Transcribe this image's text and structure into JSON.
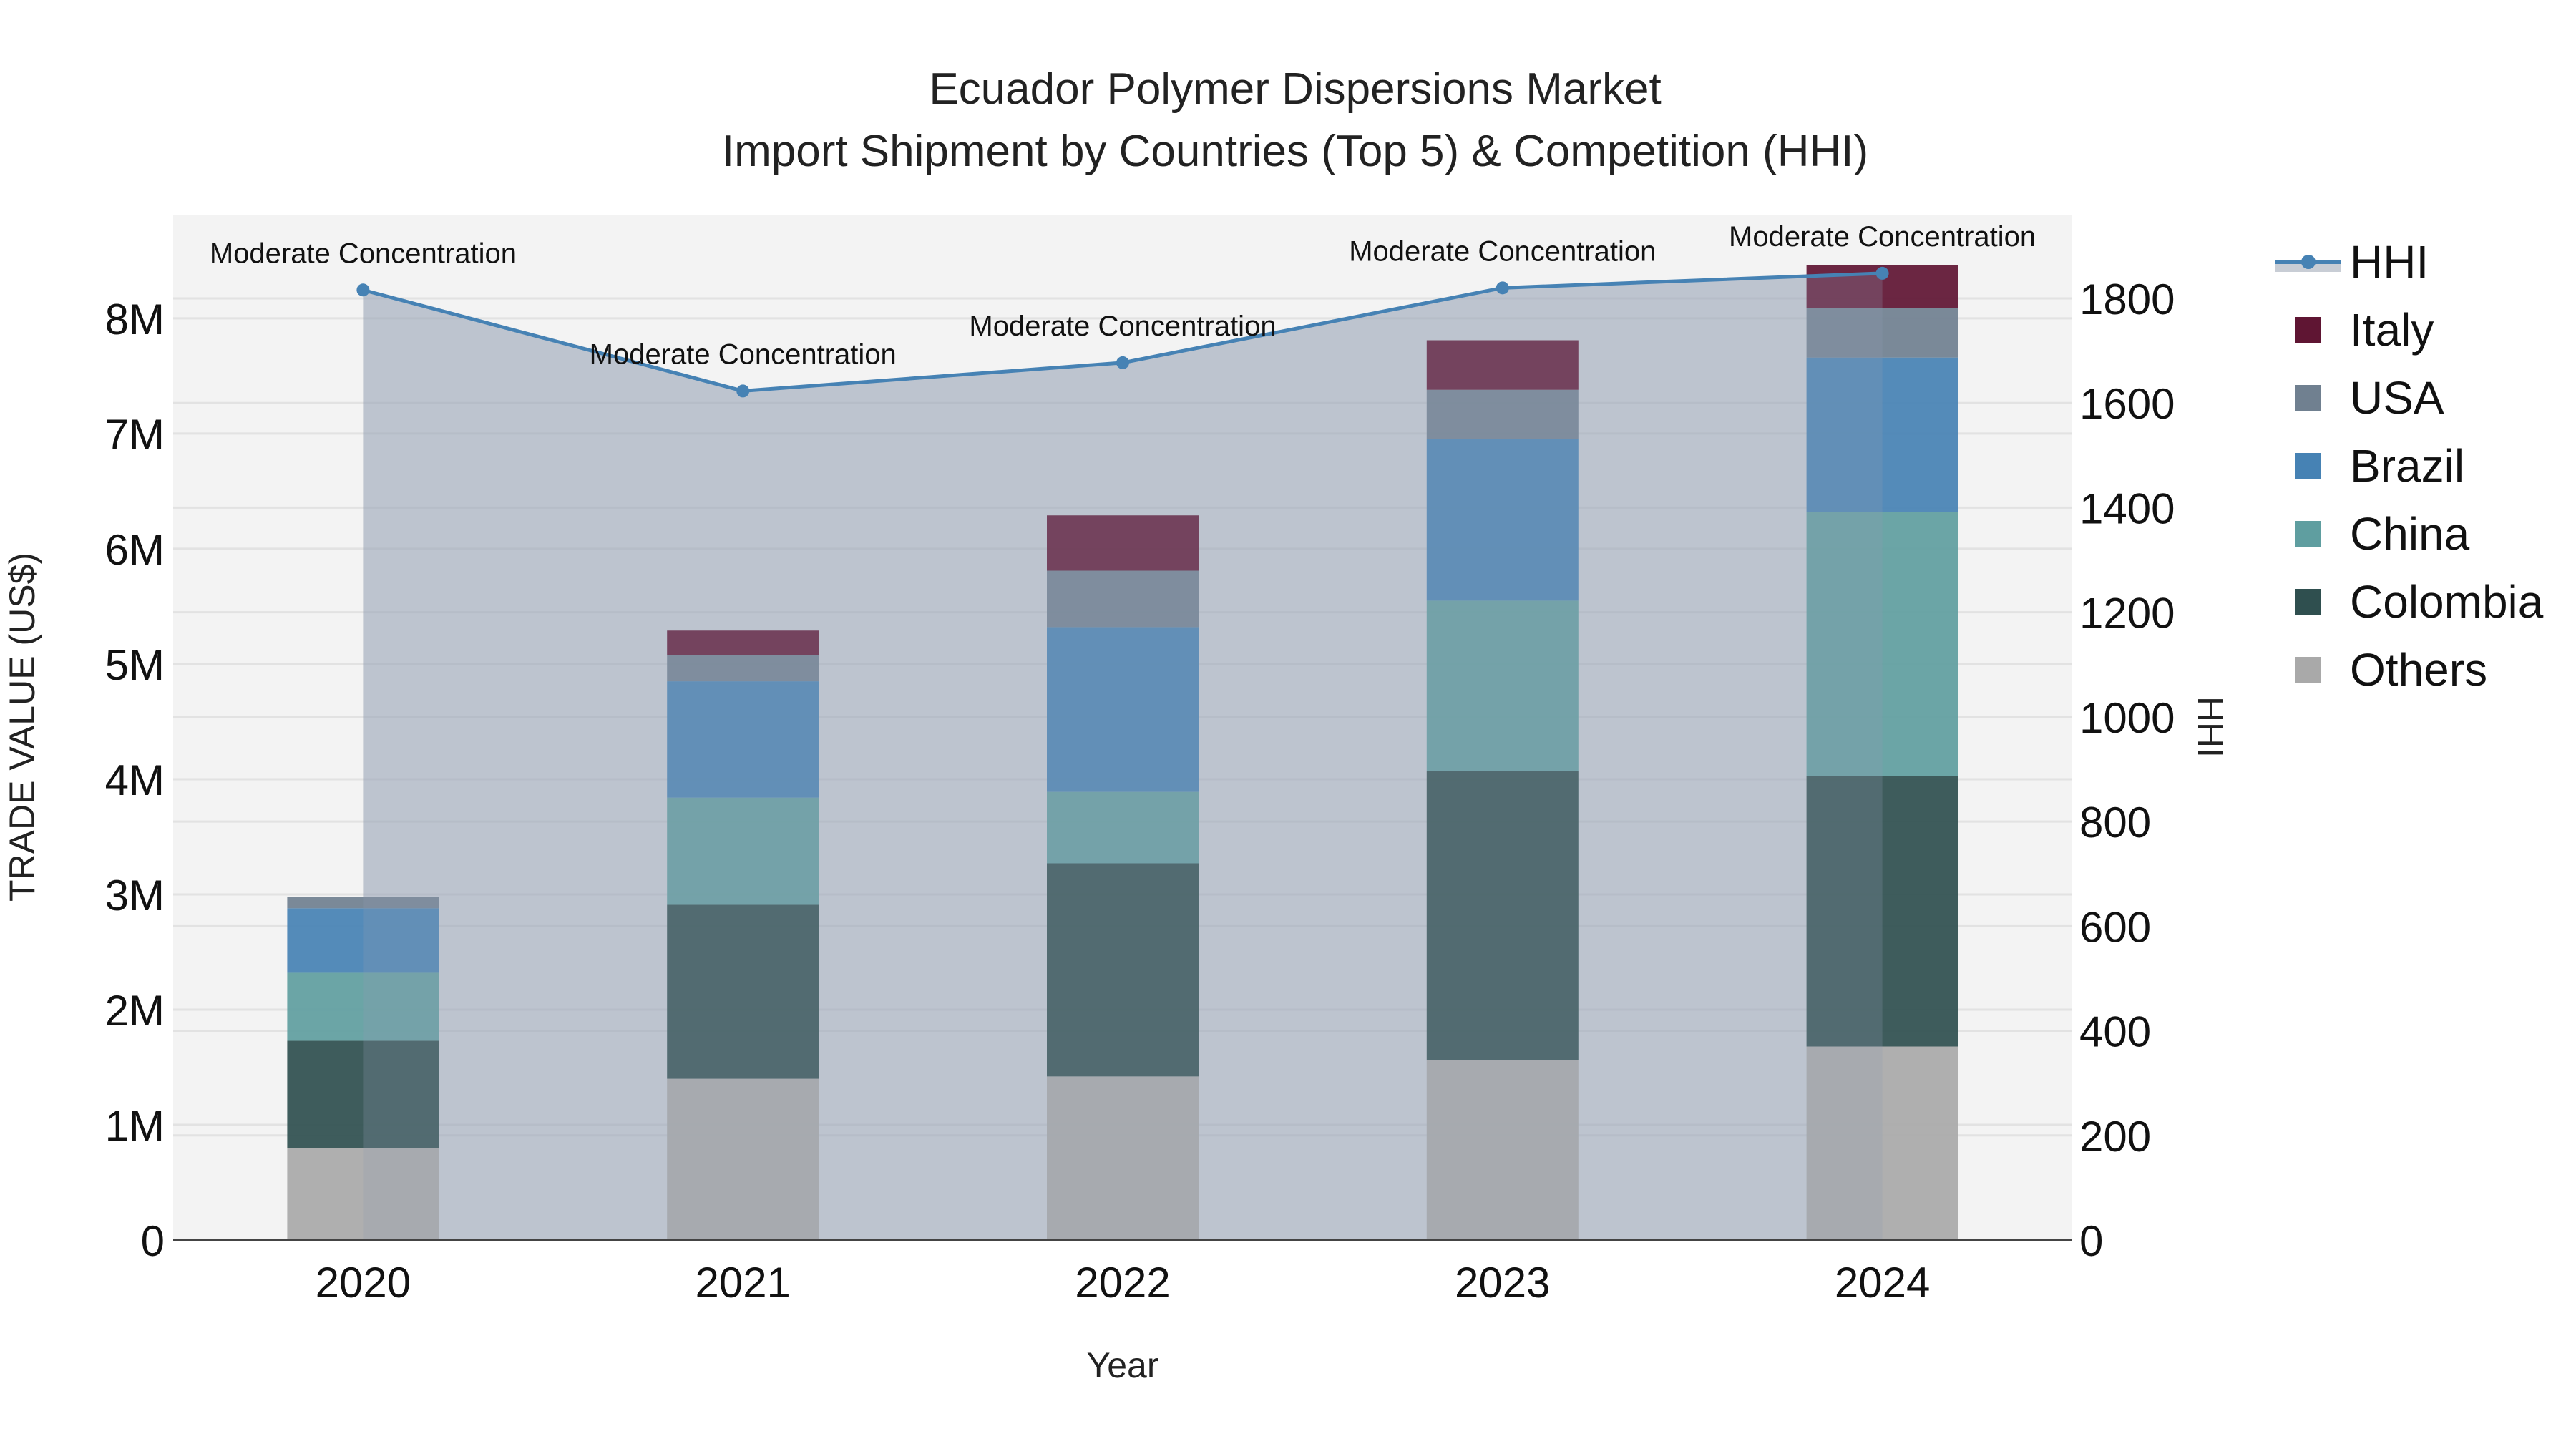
{
  "chart_data": {
    "type": "bar",
    "stacked": true,
    "title": "Ecuador Polymer Dispersions Market",
    "subtitle": "Import Shipment by Countries (Top 5) & Competition (HHI)",
    "xlabel": "Year",
    "ylabel": "TRADE VALUE (US$)",
    "y2label": "HHI",
    "categories": [
      "2020",
      "2021",
      "2022",
      "2023",
      "2024"
    ],
    "ylim": [
      0,
      8900000
    ],
    "y_ticks": [
      0,
      1000000,
      2000000,
      3000000,
      4000000,
      5000000,
      6000000,
      7000000,
      8000000
    ],
    "y_tick_labels": [
      "0",
      "1M",
      "2M",
      "3M",
      "4M",
      "5M",
      "6M",
      "7M",
      "8M"
    ],
    "y2lim": [
      0,
      1960
    ],
    "y2_ticks": [
      0,
      200,
      400,
      600,
      800,
      1000,
      1200,
      1400,
      1600,
      1800
    ],
    "y2_tick_labels": [
      "0",
      "200",
      "400",
      "600",
      "800",
      "1000",
      "1200",
      "1400",
      "1600",
      "1800"
    ],
    "grid": true,
    "legend_position": "right",
    "series": [
      {
        "name": "Others",
        "color": "#a9a9a9",
        "values": [
          800000,
          1400000,
          1420000,
          1560000,
          1680000
        ]
      },
      {
        "name": "Colombia",
        "color": "#2f4f4f",
        "values": [
          930000,
          1510000,
          1850000,
          2510000,
          2350000
        ]
      },
      {
        "name": "China",
        "color": "#5f9ea0",
        "values": [
          590000,
          930000,
          620000,
          1480000,
          2290000
        ]
      },
      {
        "name": "Brazil",
        "color": "#4682b4",
        "values": [
          560000,
          1010000,
          1430000,
          1400000,
          1340000
        ]
      },
      {
        "name": "USA",
        "color": "#708090",
        "values": [
          100000,
          230000,
          490000,
          430000,
          430000
        ]
      },
      {
        "name": "Italy",
        "color": "#5f1533",
        "values": [
          0,
          210000,
          480000,
          430000,
          370000
        ]
      }
    ],
    "line_series": {
      "name": "HHI",
      "color": "#4682b4",
      "axis": "y2",
      "values": [
        1816,
        1623,
        1677,
        1820,
        1848
      ],
      "annotations": [
        "Moderate Concentration",
        "Moderate Concentration",
        "Moderate Concentration",
        "Moderate Concentration",
        "Moderate Concentration"
      ]
    }
  },
  "legend": {
    "items": [
      {
        "label": "HHI",
        "type": "line",
        "color": "#4682b4"
      },
      {
        "label": "Italy",
        "type": "box",
        "color": "#5f1533"
      },
      {
        "label": "USA",
        "type": "box",
        "color": "#708090"
      },
      {
        "label": "Brazil",
        "type": "box",
        "color": "#4682b4"
      },
      {
        "label": "China",
        "type": "box",
        "color": "#5f9ea0"
      },
      {
        "label": "Colombia",
        "type": "box",
        "color": "#2f4f4f"
      },
      {
        "label": "Others",
        "type": "box",
        "color": "#a9a9a9"
      }
    ]
  },
  "colors": {
    "plot_bg": "#f3f3f3",
    "hhi_area": "#c8cdd5",
    "grid": "#e2e2e2",
    "axis_line": "#444444"
  }
}
